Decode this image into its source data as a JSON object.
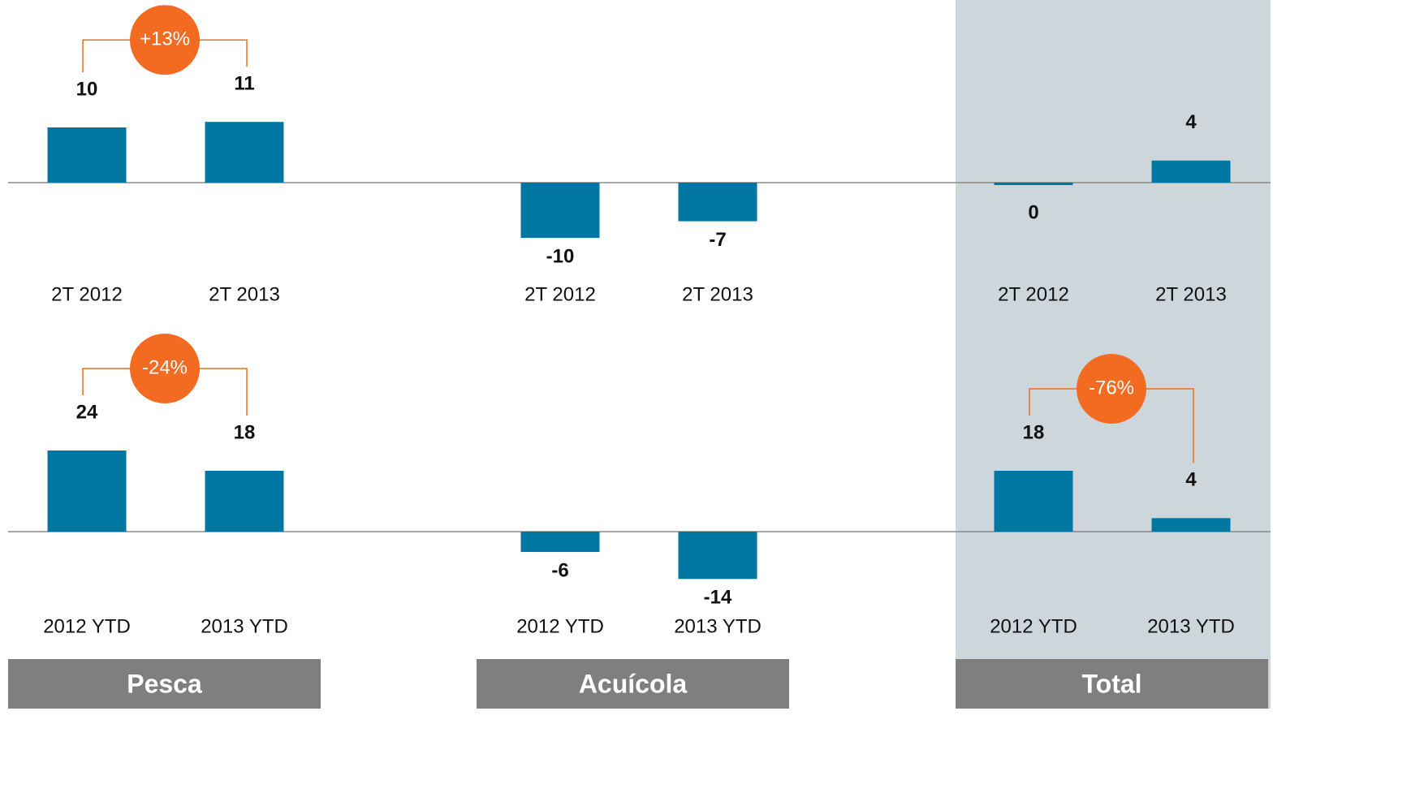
{
  "panels": [
    "Pesca",
    "Acuícola",
    "Total"
  ],
  "chart_data": [
    {
      "type": "bar",
      "categories": [
        "2T 2012",
        "2T 2013"
      ],
      "values": [
        10,
        11
      ],
      "value_labels": [
        "10",
        "11"
      ],
      "color": "#0077a3",
      "ylim": [
        -20,
        20
      ],
      "annotation": "+13%"
    },
    {
      "type": "bar",
      "categories": [
        "2T 2012",
        "2T 2013"
      ],
      "values": [
        -10,
        -7
      ],
      "color": "#0077a3",
      "ylim": [
        -20,
        20
      ]
    },
    {
      "type": "bar",
      "categories": [
        "2T 2012",
        "2T 2013"
      ],
      "values": [
        0,
        4
      ],
      "color": "#0077a3",
      "ylim": [
        -20,
        20
      ]
    },
    {
      "type": "bar",
      "categories": [
        "2012 YTD",
        "2013 YTD"
      ],
      "values": [
        24,
        18
      ],
      "color": "#0077a3",
      "ylim": [
        -24,
        24
      ],
      "annotation": "-24%"
    },
    {
      "type": "bar",
      "categories": [
        "2012 YTD",
        "2013 YTD"
      ],
      "values": [
        -6,
        -14
      ],
      "color": "#0077a3",
      "ylim": [
        -24,
        24
      ]
    },
    {
      "type": "bar",
      "categories": [
        "2012 YTD",
        "2013 YTD"
      ],
      "values": [
        18,
        4
      ],
      "color": "#0077a3",
      "ylim": [
        -24,
        24
      ],
      "annotation": "-76%"
    }
  ]
}
